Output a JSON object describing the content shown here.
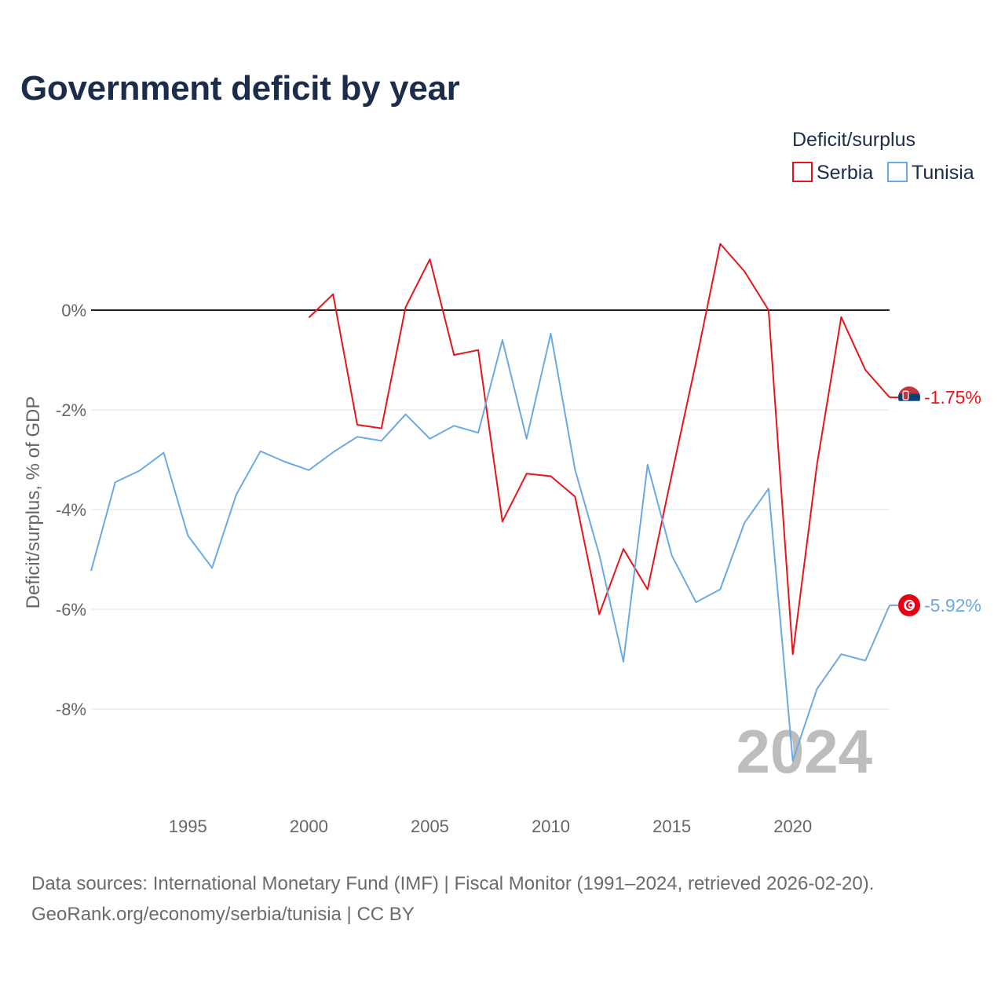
{
  "title": "Government deficit by year",
  "footer": {
    "sources": "Data sources: International Monetary Fund (IMF) | Fiscal Monitor (1991–2024, retrieved 2026-02-20).",
    "credit": "GeoRank.org/economy/serbia/tunisia | CC BY"
  },
  "colors": {
    "serbia": "#e8141b",
    "tunisia": "#6aaae4",
    "zero_line": "#222222",
    "grid": "#e3e3e3"
  },
  "chart_data": {
    "type": "line",
    "title": "Government deficit by year",
    "xlabel": "",
    "ylabel": "Deficit/surplus, % of GDP",
    "xlim": [
      1991,
      2024
    ],
    "ylim": [
      -9.5,
      1.5
    ],
    "x_ticks": [
      1995,
      2000,
      2005,
      2010,
      2015,
      2020
    ],
    "y_ticks": [
      0,
      -2,
      -4,
      -6,
      -8
    ],
    "y_tick_labels": [
      "0%",
      "-2%",
      "-4%",
      "-6%",
      "-8%"
    ],
    "legend_title": "Deficit/surplus",
    "legend_position": "top-right",
    "year_watermark": "2024",
    "series": [
      {
        "name": "Serbia",
        "color": "#e8141b",
        "end_label": "-1.75%",
        "x": [
          2000,
          2001,
          2002,
          2003,
          2004,
          2005,
          2006,
          2007,
          2008,
          2009,
          2010,
          2011,
          2012,
          2013,
          2014,
          2015,
          2016,
          2017,
          2018,
          2019,
          2020,
          2021,
          2022,
          2023,
          2024
        ],
        "values": [
          -0.15,
          0.32,
          -2.3,
          -2.37,
          0.06,
          1.02,
          -0.9,
          -0.8,
          -4.24,
          -3.28,
          -3.33,
          -3.74,
          -6.1,
          -4.79,
          -5.6,
          -3.3,
          -1.04,
          1.33,
          0.78,
          0.0,
          -6.9,
          -3.1,
          -0.14,
          -1.2,
          -1.75
        ]
      },
      {
        "name": "Tunisia",
        "color": "#6aaae4",
        "end_label": "-5.92%",
        "x": [
          1991,
          1992,
          1993,
          1994,
          1995,
          1996,
          1997,
          1998,
          1999,
          2000,
          2001,
          2002,
          2003,
          2004,
          2005,
          2006,
          2007,
          2008,
          2009,
          2010,
          2011,
          2012,
          2013,
          2014,
          2015,
          2016,
          2017,
          2018,
          2019,
          2020,
          2021,
          2022,
          2023,
          2024
        ],
        "values": [
          -5.23,
          -3.45,
          -3.22,
          -2.86,
          -4.52,
          -5.17,
          -3.7,
          -2.83,
          -3.04,
          -3.21,
          -2.85,
          -2.54,
          -2.62,
          -2.09,
          -2.58,
          -2.32,
          -2.46,
          -0.6,
          -2.58,
          -0.47,
          -3.2,
          -4.9,
          -7.05,
          -3.1,
          -4.92,
          -5.86,
          -5.6,
          -4.27,
          -3.58,
          -9.04,
          -7.6,
          -6.9,
          -7.03,
          -5.92
        ]
      }
    ]
  }
}
